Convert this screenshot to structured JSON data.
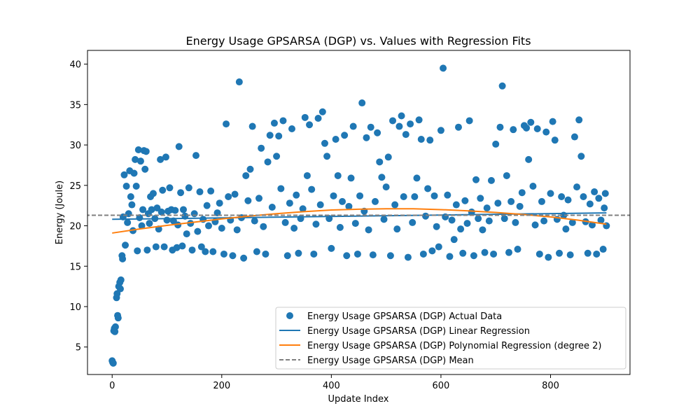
{
  "chart_data": {
    "type": "scatter",
    "title": "Energy Usage GPSARSA (DGP) vs. Values with Regression Fits",
    "xlabel": "Update Index",
    "ylabel": "Energy (Joule)",
    "xlim": [
      -45,
      945
    ],
    "ylim": [
      1.6,
      41.7
    ],
    "xticks": [
      0,
      200,
      400,
      600,
      800
    ],
    "yticks": [
      5,
      10,
      15,
      20,
      25,
      30,
      35,
      40
    ],
    "grid": false,
    "legend_position": "lower-right",
    "series": [
      {
        "name": "Energy Usage GPSARSA (DGP) Actual Data",
        "kind": "scatter",
        "color": "#1f77b4",
        "points": [
          [
            0,
            3.3
          ],
          [
            1,
            3.1
          ],
          [
            2,
            3.0
          ],
          [
            3,
            7.0
          ],
          [
            4,
            7.3
          ],
          [
            5,
            6.9
          ],
          [
            6,
            7.5
          ],
          [
            8,
            11.1
          ],
          [
            9,
            11.6
          ],
          [
            10,
            8.9
          ],
          [
            11,
            8.6
          ],
          [
            12,
            12.5
          ],
          [
            14,
            13.0
          ],
          [
            15,
            12.2
          ],
          [
            16,
            13.3
          ],
          [
            18,
            16.3
          ],
          [
            19,
            15.9
          ],
          [
            20,
            21.1
          ],
          [
            22,
            26.3
          ],
          [
            24,
            17.6
          ],
          [
            26,
            24.9
          ],
          [
            28,
            20.4
          ],
          [
            30,
            21.5
          ],
          [
            32,
            26.8
          ],
          [
            34,
            23.6
          ],
          [
            36,
            22.6
          ],
          [
            38,
            19.4
          ],
          [
            40,
            26.5
          ],
          [
            42,
            28.2
          ],
          [
            44,
            24.9
          ],
          [
            46,
            16.9
          ],
          [
            48,
            29.4
          ],
          [
            50,
            21.0
          ],
          [
            52,
            28.0
          ],
          [
            54,
            20.0
          ],
          [
            56,
            22.0
          ],
          [
            58,
            29.3
          ],
          [
            60,
            27.0
          ],
          [
            62,
            29.2
          ],
          [
            64,
            17.0
          ],
          [
            66,
            21.5
          ],
          [
            68,
            20.3
          ],
          [
            70,
            23.6
          ],
          [
            72,
            22.0
          ],
          [
            75,
            24.0
          ],
          [
            78,
            20.9
          ],
          [
            80,
            17.4
          ],
          [
            82,
            22.2
          ],
          [
            85,
            19.6
          ],
          [
            88,
            28.2
          ],
          [
            90,
            21.7
          ],
          [
            92,
            24.4
          ],
          [
            95,
            17.4
          ],
          [
            98,
            28.5
          ],
          [
            100,
            20.7
          ],
          [
            102,
            21.8
          ],
          [
            105,
            24.7
          ],
          [
            108,
            22.0
          ],
          [
            110,
            17.0
          ],
          [
            112,
            20.6
          ],
          [
            115,
            21.9
          ],
          [
            118,
            17.3
          ],
          [
            120,
            20.1
          ],
          [
            122,
            29.8
          ],
          [
            125,
            24.1
          ],
          [
            128,
            17.5
          ],
          [
            130,
            22.0
          ],
          [
            133,
            21.2
          ],
          [
            136,
            19.0
          ],
          [
            140,
            24.7
          ],
          [
            143,
            20.3
          ],
          [
            146,
            17.0
          ],
          [
            150,
            21.5
          ],
          [
            153,
            28.7
          ],
          [
            156,
            19.3
          ],
          [
            160,
            24.2
          ],
          [
            163,
            17.4
          ],
          [
            166,
            20.8
          ],
          [
            170,
            16.8
          ],
          [
            173,
            22.5
          ],
          [
            176,
            20.0
          ],
          [
            180,
            24.3
          ],
          [
            184,
            16.8
          ],
          [
            188,
            20.5
          ],
          [
            192,
            21.6
          ],
          [
            196,
            22.8
          ],
          [
            200,
            19.7
          ],
          [
            204,
            16.5
          ],
          [
            208,
            32.6
          ],
          [
            212,
            23.6
          ],
          [
            216,
            20.7
          ],
          [
            220,
            16.3
          ],
          [
            224,
            23.9
          ],
          [
            228,
            19.5
          ],
          [
            232,
            37.8
          ],
          [
            236,
            21.0
          ],
          [
            240,
            16.0
          ],
          [
            244,
            26.2
          ],
          [
            248,
            23.1
          ],
          [
            252,
            27.0
          ],
          [
            256,
            32.3
          ],
          [
            260,
            20.6
          ],
          [
            264,
            16.8
          ],
          [
            268,
            23.4
          ],
          [
            272,
            29.6
          ],
          [
            276,
            19.9
          ],
          [
            280,
            16.5
          ],
          [
            284,
            27.9
          ],
          [
            288,
            31.2
          ],
          [
            292,
            22.3
          ],
          [
            296,
            32.7
          ],
          [
            300,
            28.6
          ],
          [
            304,
            31.1
          ],
          [
            308,
            24.6
          ],
          [
            312,
            33.0
          ],
          [
            316,
            20.4
          ],
          [
            320,
            16.3
          ],
          [
            324,
            22.8
          ],
          [
            328,
            32.0
          ],
          [
            332,
            19.7
          ],
          [
            336,
            23.8
          ],
          [
            340,
            16.6
          ],
          [
            344,
            20.9
          ],
          [
            348,
            22.1
          ],
          [
            352,
            33.4
          ],
          [
            356,
            26.2
          ],
          [
            360,
            32.5
          ],
          [
            364,
            24.5
          ],
          [
            368,
            16.5
          ],
          [
            372,
            20.2
          ],
          [
            376,
            33.3
          ],
          [
            380,
            22.6
          ],
          [
            384,
            34.1
          ],
          [
            388,
            30.2
          ],
          [
            392,
            28.6
          ],
          [
            396,
            20.9
          ],
          [
            400,
            17.2
          ],
          [
            404,
            23.7
          ],
          [
            408,
            30.7
          ],
          [
            412,
            26.2
          ],
          [
            416,
            19.8
          ],
          [
            420,
            23.0
          ],
          [
            424,
            31.2
          ],
          [
            428,
            16.3
          ],
          [
            432,
            22.4
          ],
          [
            436,
            25.9
          ],
          [
            440,
            32.3
          ],
          [
            444,
            20.3
          ],
          [
            448,
            16.5
          ],
          [
            452,
            23.7
          ],
          [
            456,
            35.2
          ],
          [
            460,
            21.8
          ],
          [
            464,
            30.9
          ],
          [
            468,
            19.5
          ],
          [
            472,
            32.2
          ],
          [
            476,
            16.4
          ],
          [
            480,
            23.0
          ],
          [
            484,
            31.5
          ],
          [
            488,
            27.9
          ],
          [
            492,
            26.0
          ],
          [
            496,
            20.8
          ],
          [
            500,
            24.8
          ],
          [
            504,
            28.5
          ],
          [
            508,
            16.3
          ],
          [
            512,
            33.0
          ],
          [
            516,
            22.6
          ],
          [
            520,
            19.6
          ],
          [
            524,
            32.3
          ],
          [
            528,
            33.6
          ],
          [
            532,
            23.6
          ],
          [
            536,
            31.3
          ],
          [
            540,
            16.1
          ],
          [
            544,
            32.6
          ],
          [
            548,
            20.4
          ],
          [
            552,
            23.6
          ],
          [
            556,
            25.9
          ],
          [
            560,
            33.1
          ],
          [
            564,
            30.7
          ],
          [
            568,
            16.5
          ],
          [
            572,
            21.2
          ],
          [
            576,
            24.6
          ],
          [
            580,
            30.6
          ],
          [
            584,
            16.9
          ],
          [
            588,
            23.7
          ],
          [
            592,
            19.9
          ],
          [
            596,
            17.4
          ],
          [
            600,
            31.8
          ],
          [
            604,
            39.5
          ],
          [
            608,
            21.1
          ],
          [
            612,
            23.8
          ],
          [
            616,
            16.2
          ],
          [
            620,
            20.7
          ],
          [
            624,
            18.3
          ],
          [
            628,
            22.6
          ],
          [
            632,
            32.2
          ],
          [
            636,
            19.6
          ],
          [
            640,
            16.6
          ],
          [
            644,
            23.1
          ],
          [
            648,
            20.3
          ],
          [
            652,
            33.0
          ],
          [
            656,
            21.7
          ],
          [
            660,
            16.3
          ],
          [
            664,
            25.7
          ],
          [
            668,
            20.9
          ],
          [
            672,
            23.4
          ],
          [
            676,
            19.5
          ],
          [
            680,
            16.7
          ],
          [
            684,
            22.2
          ],
          [
            688,
            20.6
          ],
          [
            692,
            25.6
          ],
          [
            696,
            16.5
          ],
          [
            700,
            30.1
          ],
          [
            704,
            22.8
          ],
          [
            708,
            32.2
          ],
          [
            712,
            37.3
          ],
          [
            716,
            20.9
          ],
          [
            720,
            26.2
          ],
          [
            724,
            16.7
          ],
          [
            728,
            23.0
          ],
          [
            732,
            31.9
          ],
          [
            736,
            20.4
          ],
          [
            740,
            17.1
          ],
          [
            744,
            22.4
          ],
          [
            748,
            24.1
          ],
          [
            752,
            32.4
          ],
          [
            756,
            32.1
          ],
          [
            760,
            28.2
          ],
          [
            764,
            32.8
          ],
          [
            768,
            24.9
          ],
          [
            772,
            20.1
          ],
          [
            776,
            32.0
          ],
          [
            780,
            16.5
          ],
          [
            784,
            23.0
          ],
          [
            788,
            20.6
          ],
          [
            792,
            31.6
          ],
          [
            796,
            16.1
          ],
          [
            800,
            24.0
          ],
          [
            804,
            32.9
          ],
          [
            808,
            30.6
          ],
          [
            812,
            20.8
          ],
          [
            816,
            16.6
          ],
          [
            820,
            23.6
          ],
          [
            824,
            21.3
          ],
          [
            828,
            19.6
          ],
          [
            832,
            23.2
          ],
          [
            836,
            16.4
          ],
          [
            840,
            20.4
          ],
          [
            844,
            31.0
          ],
          [
            848,
            24.8
          ],
          [
            852,
            33.1
          ],
          [
            856,
            28.6
          ],
          [
            860,
            23.6
          ],
          [
            864,
            20.5
          ],
          [
            868,
            16.6
          ],
          [
            872,
            22.7
          ],
          [
            876,
            20.1
          ],
          [
            880,
            24.2
          ],
          [
            884,
            16.5
          ],
          [
            888,
            23.4
          ],
          [
            892,
            20.7
          ],
          [
            896,
            17.1
          ],
          [
            898,
            22.2
          ],
          [
            900,
            24.0
          ],
          [
            902,
            20.0
          ]
        ]
      },
      {
        "name": "Energy Usage GPSARSA (DGP) Linear Regression",
        "kind": "line",
        "color": "#1f77b4",
        "x": [
          0,
          902
        ],
        "y": [
          20.8,
          21.6
        ]
      },
      {
        "name": "Energy Usage GPSARSA (DGP) Polynomial Regression (degree 2)",
        "kind": "line",
        "color": "#ff7f0e",
        "x": [
          0,
          50,
          100,
          150,
          200,
          250,
          300,
          350,
          400,
          450,
          500,
          550,
          600,
          650,
          700,
          750,
          800,
          850,
          902
        ],
        "y": [
          19.1,
          19.6,
          20.05,
          20.45,
          20.85,
          21.2,
          21.5,
          21.75,
          21.95,
          22.05,
          22.1,
          22.1,
          22.0,
          21.85,
          21.65,
          21.4,
          21.1,
          20.7,
          20.2
        ]
      },
      {
        "name": "Energy Usage GPSARSA (DGP) Mean",
        "kind": "hline",
        "color": "#808080",
        "dash": true,
        "y": 21.3
      }
    ]
  }
}
